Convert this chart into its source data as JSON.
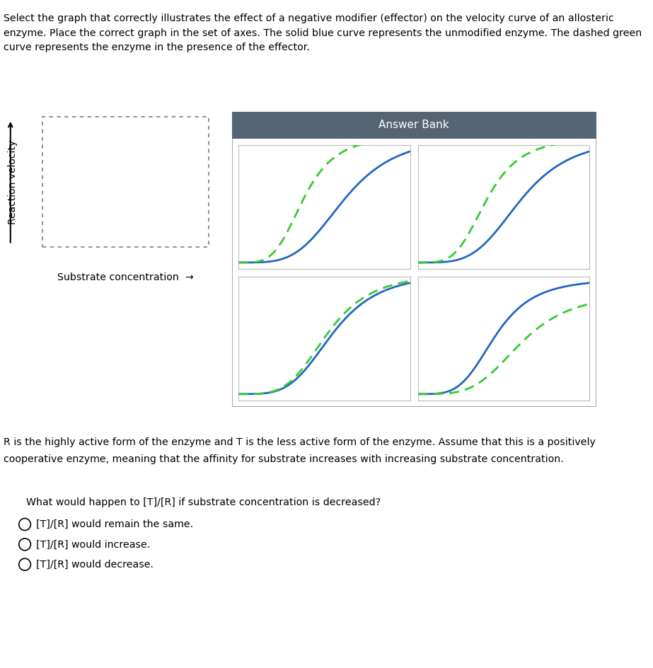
{
  "title_line1": "Select the graph that correctly illustrates the effect of a negative modifier (effector) on the velocity curve of an allosteric",
  "title_line2": "enzyme. Place the correct graph in the set of axes. The solid blue curve represents the unmodified enzyme. The dashed green",
  "title_line3": "curve represents the enzyme in the presence of the effector.",
  "answer_bank_title": "Answer Bank",
  "answer_bank_header_color": "#566573",
  "answer_bank_header_text_color": "#ffffff",
  "ylabel": "Reaction velocity",
  "xlabel": "Substrate concentration",
  "blue_color": "#2166c0",
  "green_color": "#33cc33",
  "bottom_text1": "R is the highly active form of the enzyme and T is the less active form of the enzyme. Assume that this is a positively",
  "bottom_text2": "cooperative enzyme, meaning that the affinity for substrate increases with increasing substrate concentration.",
  "question_text": "What would happen to [T]/[R] if substrate concentration is decreased?",
  "answer1": "[T]/[R] would remain the same.",
  "answer2": "[T]/[R] would increase.",
  "answer3": "[T]/[R] would decrease.",
  "fig_width": 9.23,
  "fig_height": 9.44,
  "panels": [
    {
      "blue_k": 0.62,
      "blue_n": 4,
      "green_k": 0.38,
      "green_n": 4,
      "green_vmax": 1.0
    },
    {
      "blue_k": 0.6,
      "blue_n": 4,
      "green_k": 0.4,
      "green_n": 4,
      "green_vmax": 1.0
    },
    {
      "blue_k": 0.55,
      "blue_n": 4,
      "green_k": 0.52,
      "green_n": 4,
      "green_vmax": 1.0
    },
    {
      "blue_k": 0.45,
      "blue_n": 4,
      "green_k": 0.6,
      "green_n": 4,
      "green_vmax": 0.88
    }
  ]
}
